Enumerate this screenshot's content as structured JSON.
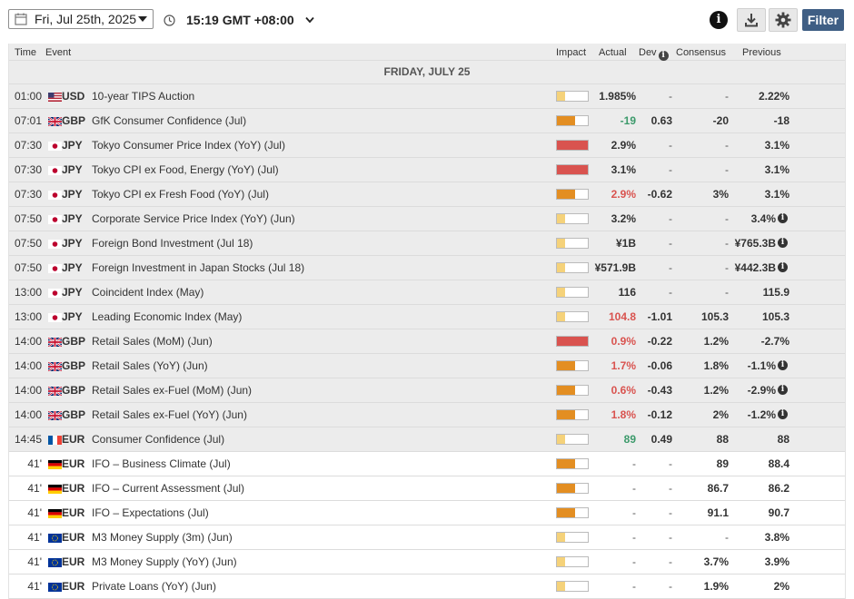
{
  "toolbar": {
    "date": "Fri, Jul 25th, 2025",
    "timezone": "15:19 GMT +08:00",
    "filter_label": "Filter",
    "info_label": "i"
  },
  "colors": {
    "impact_low": "#f5d27a",
    "impact_med": "#e38e22",
    "impact_high": "#d9534f",
    "accent": "#3f5e84",
    "positive": "#3c9a6b",
    "negative": "#d9534f"
  },
  "columns": {
    "time": "Time",
    "event": "Event",
    "impact": "Impact",
    "actual": "Actual",
    "dev": "Dev",
    "consensus": "Consensus",
    "previous": "Previous"
  },
  "day_header": "FRIDAY, JULY 25",
  "rows": [
    {
      "time": "01:00",
      "flag": "US",
      "currency": "USD",
      "event": "10-year TIPS Auction",
      "impact": "low",
      "actual": "1.985%",
      "actual_tone": "neutral",
      "dev": "-",
      "consensus": "-",
      "previous": "2.22%",
      "previous_info": false,
      "state": "past"
    },
    {
      "time": "07:01",
      "flag": "GB",
      "currency": "GBP",
      "event": "GfK Consumer Confidence (Jul)",
      "impact": "med",
      "actual": "-19",
      "actual_tone": "green",
      "dev": "0.63",
      "consensus": "-20",
      "previous": "-18",
      "previous_info": false,
      "state": "past"
    },
    {
      "time": "07:30",
      "flag": "JP",
      "currency": "JPY",
      "event": "Tokyo Consumer Price Index (YoY) (Jul)",
      "impact": "high",
      "actual": "2.9%",
      "actual_tone": "neutral",
      "dev": "-",
      "consensus": "-",
      "previous": "3.1%",
      "previous_info": false,
      "state": "past"
    },
    {
      "time": "07:30",
      "flag": "JP",
      "currency": "JPY",
      "event": "Tokyo CPI ex Food, Energy (YoY) (Jul)",
      "impact": "high",
      "actual": "3.1%",
      "actual_tone": "neutral",
      "dev": "-",
      "consensus": "-",
      "previous": "3.1%",
      "previous_info": false,
      "state": "past"
    },
    {
      "time": "07:30",
      "flag": "JP",
      "currency": "JPY",
      "event": "Tokyo CPI ex Fresh Food (YoY) (Jul)",
      "impact": "med",
      "actual": "2.9%",
      "actual_tone": "red",
      "dev": "-0.62",
      "consensus": "3%",
      "previous": "3.1%",
      "previous_info": false,
      "state": "past"
    },
    {
      "time": "07:50",
      "flag": "JP",
      "currency": "JPY",
      "event": "Corporate Service Price Index (YoY) (Jun)",
      "impact": "low",
      "actual": "3.2%",
      "actual_tone": "neutral",
      "dev": "-",
      "consensus": "-",
      "previous": "3.4%",
      "previous_info": true,
      "state": "past"
    },
    {
      "time": "07:50",
      "flag": "JP",
      "currency": "JPY",
      "event": "Foreign Bond Investment (Jul 18)",
      "impact": "low",
      "actual": "¥1B",
      "actual_tone": "neutral",
      "dev": "-",
      "consensus": "-",
      "previous": "¥765.3B",
      "previous_info": true,
      "state": "past"
    },
    {
      "time": "07:50",
      "flag": "JP",
      "currency": "JPY",
      "event": "Foreign Investment in Japan Stocks (Jul 18)",
      "impact": "low",
      "actual": "¥571.9B",
      "actual_tone": "neutral",
      "dev": "-",
      "consensus": "-",
      "previous": "¥442.3B",
      "previous_info": true,
      "state": "past"
    },
    {
      "time": "13:00",
      "flag": "JP",
      "currency": "JPY",
      "event": "Coincident Index (May)",
      "impact": "low",
      "actual": "116",
      "actual_tone": "neutral",
      "dev": "-",
      "consensus": "-",
      "previous": "115.9",
      "previous_info": false,
      "state": "past"
    },
    {
      "time": "13:00",
      "flag": "JP",
      "currency": "JPY",
      "event": "Leading Economic Index (May)",
      "impact": "low",
      "actual": "104.8",
      "actual_tone": "red",
      "dev": "-1.01",
      "consensus": "105.3",
      "previous": "105.3",
      "previous_info": false,
      "state": "past"
    },
    {
      "time": "14:00",
      "flag": "GB",
      "currency": "GBP",
      "event": "Retail Sales (MoM) (Jun)",
      "impact": "high",
      "actual": "0.9%",
      "actual_tone": "red",
      "dev": "-0.22",
      "consensus": "1.2%",
      "previous": "-2.7%",
      "previous_info": false,
      "state": "past"
    },
    {
      "time": "14:00",
      "flag": "GB",
      "currency": "GBP",
      "event": "Retail Sales (YoY) (Jun)",
      "impact": "med",
      "actual": "1.7%",
      "actual_tone": "red",
      "dev": "-0.06",
      "consensus": "1.8%",
      "previous": "-1.1%",
      "previous_info": true,
      "state": "past"
    },
    {
      "time": "14:00",
      "flag": "GB",
      "currency": "GBP",
      "event": "Retail Sales ex-Fuel (MoM) (Jun)",
      "impact": "med",
      "actual": "0.6%",
      "actual_tone": "red",
      "dev": "-0.43",
      "consensus": "1.2%",
      "previous": "-2.9%",
      "previous_info": true,
      "state": "past"
    },
    {
      "time": "14:00",
      "flag": "GB",
      "currency": "GBP",
      "event": "Retail Sales ex-Fuel (YoY) (Jun)",
      "impact": "med",
      "actual": "1.8%",
      "actual_tone": "red",
      "dev": "-0.12",
      "consensus": "2%",
      "previous": "-1.2%",
      "previous_info": true,
      "state": "past"
    },
    {
      "time": "14:45",
      "flag": "FR",
      "currency": "EUR",
      "event": "Consumer Confidence (Jul)",
      "impact": "low",
      "actual": "89",
      "actual_tone": "green",
      "dev": "0.49",
      "consensus": "88",
      "previous": "88",
      "previous_info": false,
      "state": "past"
    },
    {
      "time": "41'",
      "flag": "DE",
      "currency": "EUR",
      "event": "IFO – Business Climate (Jul)",
      "impact": "med",
      "actual": "-",
      "actual_tone": "neutral",
      "dev": "-",
      "consensus": "89",
      "previous": "88.4",
      "previous_info": false,
      "state": "future"
    },
    {
      "time": "41'",
      "flag": "DE",
      "currency": "EUR",
      "event": "IFO – Current Assessment (Jul)",
      "impact": "med",
      "actual": "-",
      "actual_tone": "neutral",
      "dev": "-",
      "consensus": "86.7",
      "previous": "86.2",
      "previous_info": false,
      "state": "future"
    },
    {
      "time": "41'",
      "flag": "DE",
      "currency": "EUR",
      "event": "IFO – Expectations (Jul)",
      "impact": "med",
      "actual": "-",
      "actual_tone": "neutral",
      "dev": "-",
      "consensus": "91.1",
      "previous": "90.7",
      "previous_info": false,
      "state": "future"
    },
    {
      "time": "41'",
      "flag": "EU",
      "currency": "EUR",
      "event": "M3 Money Supply (3m) (Jun)",
      "impact": "low",
      "actual": "-",
      "actual_tone": "neutral",
      "dev": "-",
      "consensus": "-",
      "previous": "3.8%",
      "previous_info": false,
      "state": "future"
    },
    {
      "time": "41'",
      "flag": "EU",
      "currency": "EUR",
      "event": "M3 Money Supply (YoY) (Jun)",
      "impact": "low",
      "actual": "-",
      "actual_tone": "neutral",
      "dev": "-",
      "consensus": "3.7%",
      "previous": "3.9%",
      "previous_info": false,
      "state": "future"
    },
    {
      "time": "41'",
      "flag": "EU",
      "currency": "EUR",
      "event": "Private Loans (YoY) (Jun)",
      "impact": "low",
      "actual": "-",
      "actual_tone": "neutral",
      "dev": "-",
      "consensus": "1.9%",
      "previous": "2%",
      "previous_info": false,
      "state": "future"
    }
  ]
}
